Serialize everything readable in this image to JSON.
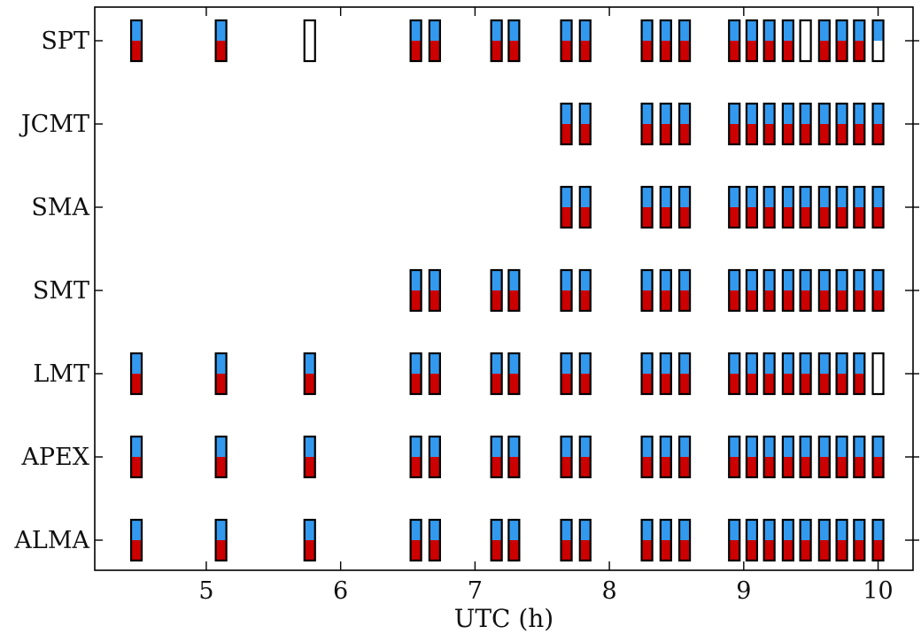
{
  "chart_data": {
    "type": "scan-coverage",
    "xlabel": "UTC (h)",
    "x_ticks": [
      5,
      6,
      7,
      8,
      9,
      10
    ],
    "xlim": [
      4.17,
      10.26
    ],
    "stations": [
      "ALMA",
      "APEX",
      "LMT",
      "SMT",
      "SMA",
      "JCMT",
      "SPT"
    ],
    "colors": {
      "upper_band": "#3399ee",
      "lower_band": "#cc0000",
      "outline": "#000000"
    },
    "scans": [
      {
        "time": 4.48,
        "ALMA": [
          1,
          1
        ],
        "APEX": [
          1,
          1
        ],
        "LMT": [
          1,
          1
        ],
        "SMT": null,
        "SMA": null,
        "JCMT": null,
        "SPT": [
          1,
          1
        ]
      },
      {
        "time": 5.11,
        "ALMA": [
          1,
          1
        ],
        "APEX": [
          1,
          1
        ],
        "LMT": [
          1,
          1
        ],
        "SMT": null,
        "SMA": null,
        "JCMT": null,
        "SPT": [
          1,
          1
        ]
      },
      {
        "time": 5.77,
        "ALMA": [
          1,
          1
        ],
        "APEX": [
          1,
          1
        ],
        "LMT": [
          1,
          1
        ],
        "SMT": null,
        "SMA": null,
        "JCMT": null,
        "SPT": [
          0,
          0
        ]
      },
      {
        "time": 6.56,
        "ALMA": [
          1,
          1
        ],
        "APEX": [
          1,
          1
        ],
        "LMT": [
          1,
          1
        ],
        "SMT": [
          1,
          1
        ],
        "SMA": null,
        "JCMT": null,
        "SPT": [
          1,
          1
        ]
      },
      {
        "time": 6.7,
        "ALMA": [
          1,
          1
        ],
        "APEX": [
          1,
          1
        ],
        "LMT": [
          1,
          1
        ],
        "SMT": [
          1,
          1
        ],
        "SMA": null,
        "JCMT": null,
        "SPT": [
          1,
          1
        ]
      },
      {
        "time": 7.16,
        "ALMA": [
          1,
          1
        ],
        "APEX": [
          1,
          1
        ],
        "LMT": [
          1,
          1
        ],
        "SMT": [
          1,
          1
        ],
        "SMA": null,
        "JCMT": null,
        "SPT": [
          1,
          1
        ]
      },
      {
        "time": 7.29,
        "ALMA": [
          1,
          1
        ],
        "APEX": [
          1,
          1
        ],
        "LMT": [
          1,
          1
        ],
        "SMT": [
          1,
          1
        ],
        "SMA": null,
        "JCMT": null,
        "SPT": [
          1,
          1
        ]
      },
      {
        "time": 7.68,
        "ALMA": [
          1,
          1
        ],
        "APEX": [
          1,
          1
        ],
        "LMT": [
          1,
          1
        ],
        "SMT": [
          1,
          1
        ],
        "SMA": [
          1,
          1
        ],
        "JCMT": [
          1,
          1
        ],
        "SPT": [
          1,
          1
        ]
      },
      {
        "time": 7.82,
        "ALMA": [
          1,
          1
        ],
        "APEX": [
          1,
          1
        ],
        "LMT": [
          1,
          1
        ],
        "SMT": [
          1,
          1
        ],
        "SMA": [
          1,
          1
        ],
        "JCMT": [
          1,
          1
        ],
        "SPT": [
          1,
          1
        ]
      },
      {
        "time": 8.28,
        "ALMA": [
          1,
          1
        ],
        "APEX": [
          1,
          1
        ],
        "LMT": [
          1,
          1
        ],
        "SMT": [
          1,
          1
        ],
        "SMA": [
          1,
          1
        ],
        "JCMT": [
          1,
          1
        ],
        "SPT": [
          1,
          1
        ]
      },
      {
        "time": 8.42,
        "ALMA": [
          1,
          1
        ],
        "APEX": [
          1,
          1
        ],
        "LMT": [
          1,
          1
        ],
        "SMT": [
          1,
          1
        ],
        "SMA": [
          1,
          1
        ],
        "JCMT": [
          1,
          1
        ],
        "SPT": [
          1,
          1
        ]
      },
      {
        "time": 8.56,
        "ALMA": [
          1,
          1
        ],
        "APEX": [
          1,
          1
        ],
        "LMT": [
          1,
          1
        ],
        "SMT": [
          1,
          1
        ],
        "SMA": [
          1,
          1
        ],
        "JCMT": [
          1,
          1
        ],
        "SPT": [
          1,
          1
        ]
      },
      {
        "time": 8.93,
        "ALMA": [
          1,
          1
        ],
        "APEX": [
          1,
          1
        ],
        "LMT": [
          1,
          1
        ],
        "SMT": [
          1,
          1
        ],
        "SMA": [
          1,
          1
        ],
        "JCMT": [
          1,
          1
        ],
        "SPT": [
          1,
          1
        ]
      },
      {
        "time": 9.06,
        "ALMA": [
          1,
          1
        ],
        "APEX": [
          1,
          1
        ],
        "LMT": [
          1,
          1
        ],
        "SMT": [
          1,
          1
        ],
        "SMA": [
          1,
          1
        ],
        "JCMT": [
          1,
          1
        ],
        "SPT": [
          1,
          1
        ]
      },
      {
        "time": 9.19,
        "ALMA": [
          1,
          1
        ],
        "APEX": [
          1,
          1
        ],
        "LMT": [
          1,
          1
        ],
        "SMT": [
          1,
          1
        ],
        "SMA": [
          1,
          1
        ],
        "JCMT": [
          1,
          1
        ],
        "SPT": [
          1,
          1
        ]
      },
      {
        "time": 9.33,
        "ALMA": [
          1,
          1
        ],
        "APEX": [
          1,
          1
        ],
        "LMT": [
          1,
          1
        ],
        "SMT": [
          1,
          1
        ],
        "SMA": [
          1,
          1
        ],
        "JCMT": [
          1,
          1
        ],
        "SPT": [
          1,
          1
        ]
      },
      {
        "time": 9.46,
        "ALMA": [
          1,
          1
        ],
        "APEX": [
          1,
          1
        ],
        "LMT": [
          1,
          1
        ],
        "SMT": [
          1,
          1
        ],
        "SMA": [
          1,
          1
        ],
        "JCMT": [
          1,
          1
        ],
        "SPT": [
          0,
          0
        ]
      },
      {
        "time": 9.6,
        "ALMA": [
          1,
          1
        ],
        "APEX": [
          1,
          1
        ],
        "LMT": [
          1,
          1
        ],
        "SMT": [
          1,
          1
        ],
        "SMA": [
          1,
          1
        ],
        "JCMT": [
          1,
          1
        ],
        "SPT": [
          1,
          1
        ]
      },
      {
        "time": 9.73,
        "ALMA": [
          1,
          1
        ],
        "APEX": [
          1,
          1
        ],
        "LMT": [
          1,
          1
        ],
        "SMT": [
          1,
          1
        ],
        "SMA": [
          1,
          1
        ],
        "JCMT": [
          1,
          1
        ],
        "SPT": [
          1,
          1
        ]
      },
      {
        "time": 9.86,
        "ALMA": [
          1,
          1
        ],
        "APEX": [
          1,
          1
        ],
        "LMT": [
          1,
          1
        ],
        "SMT": [
          1,
          1
        ],
        "SMA": [
          1,
          1
        ],
        "JCMT": [
          1,
          1
        ],
        "SPT": [
          1,
          1
        ]
      },
      {
        "time": 10.0,
        "ALMA": [
          1,
          1
        ],
        "APEX": [
          1,
          1
        ],
        "LMT": [
          0,
          0
        ],
        "SMT": [
          1,
          1
        ],
        "SMA": [
          1,
          1
        ],
        "JCMT": [
          1,
          1
        ],
        "SPT": [
          1,
          0
        ]
      }
    ]
  }
}
